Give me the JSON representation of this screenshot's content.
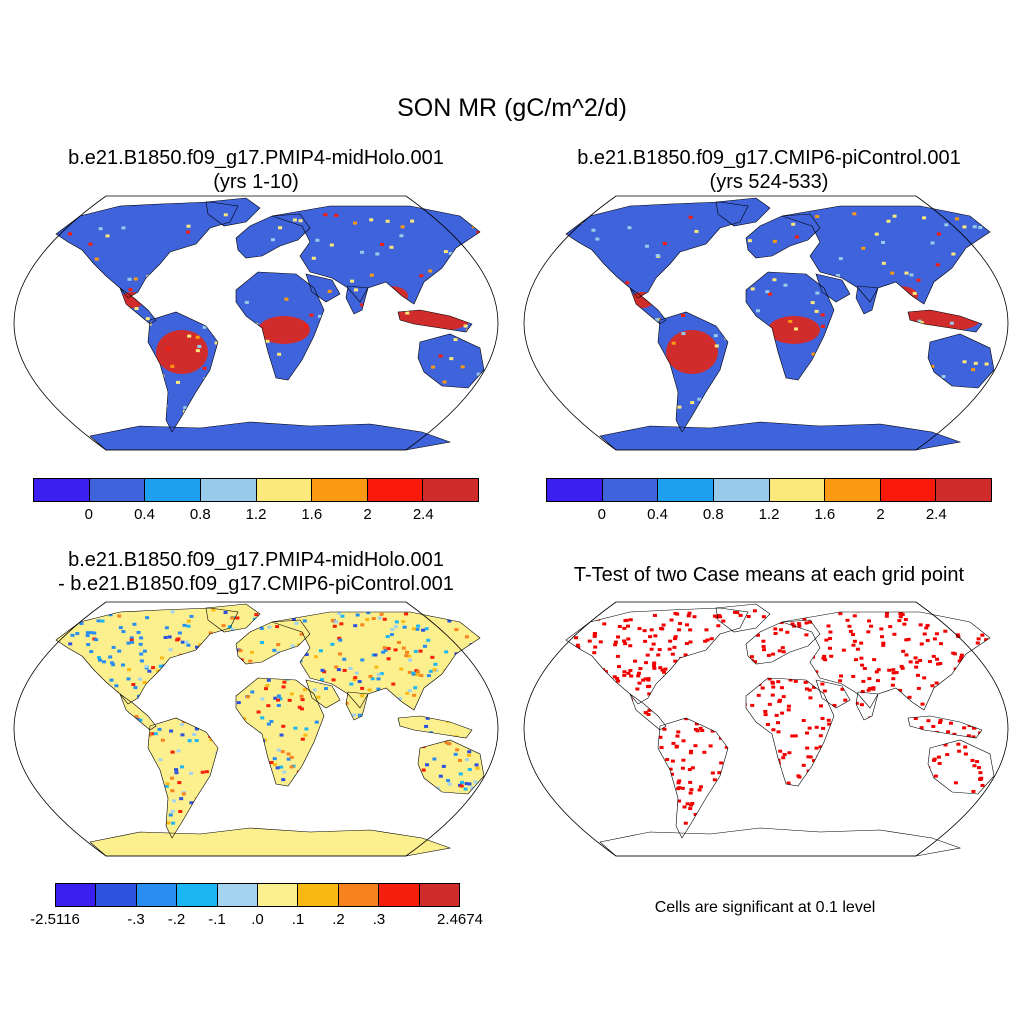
{
  "figure": {
    "title": "SON MR (gC/m^2/d)"
  },
  "panels": [
    {
      "title_line1": "b.e21.B1850.f09_g17.PMIP4-midHolo.001",
      "title_line2": "(yrs 1-10)",
      "colorbar": {
        "colors": [
          "#3a1ff0",
          "#3f63db",
          "#1fa0ee",
          "#98cbea",
          "#fbe97c",
          "#fb9a12",
          "#f91a0a",
          "#d12c2c"
        ],
        "tick_labels": [
          "0",
          "0.4",
          "0.8",
          "1.2",
          "1.6",
          "2",
          "2.4"
        ]
      }
    },
    {
      "title_line1": "b.e21.B1850.f09_g17.CMIP6-piControl.001",
      "title_line2": "(yrs 524-533)",
      "colorbar": {
        "colors": [
          "#3a1ff0",
          "#3f63db",
          "#1fa0ee",
          "#98cbea",
          "#fbe97c",
          "#fb9a12",
          "#f91a0a",
          "#d12c2c"
        ],
        "tick_labels": [
          "0",
          "0.4",
          "0.8",
          "1.2",
          "1.6",
          "2",
          "2.4"
        ]
      }
    },
    {
      "title_line1": "b.e21.B1850.f09_g17.PMIP4-midHolo.001",
      "title_line2": "- b.e21.B1850.f09_g17.CMIP6-piControl.001",
      "colorbar": {
        "colors": [
          "#3a1ff0",
          "#2d52e0",
          "#2a8ef0",
          "#1cb7f2",
          "#a3d3ee",
          "#fcef8e",
          "#f9b912",
          "#f7831f",
          "#f51f0b",
          "#d12c2c"
        ],
        "tick_labels": [
          "-2.5116",
          "-.3",
          "-.2",
          "-.1",
          ".0",
          ".1",
          ".2",
          ".3",
          "2.4674"
        ]
      }
    },
    {
      "title_line1": "T-Test of two Case means at each grid point",
      "note": "Cells are significant at 0.1 level"
    }
  ],
  "map_colors": {
    "ocean": "#ffffff",
    "land_low": "#3f63db",
    "land_mid": "#fbe97c",
    "land_high": "#d12c2c",
    "diff_neutral": "#fcef8e",
    "diff_neg": "#2d52e0",
    "diff_pos": "#f51f0b",
    "signif": "#f20000"
  }
}
